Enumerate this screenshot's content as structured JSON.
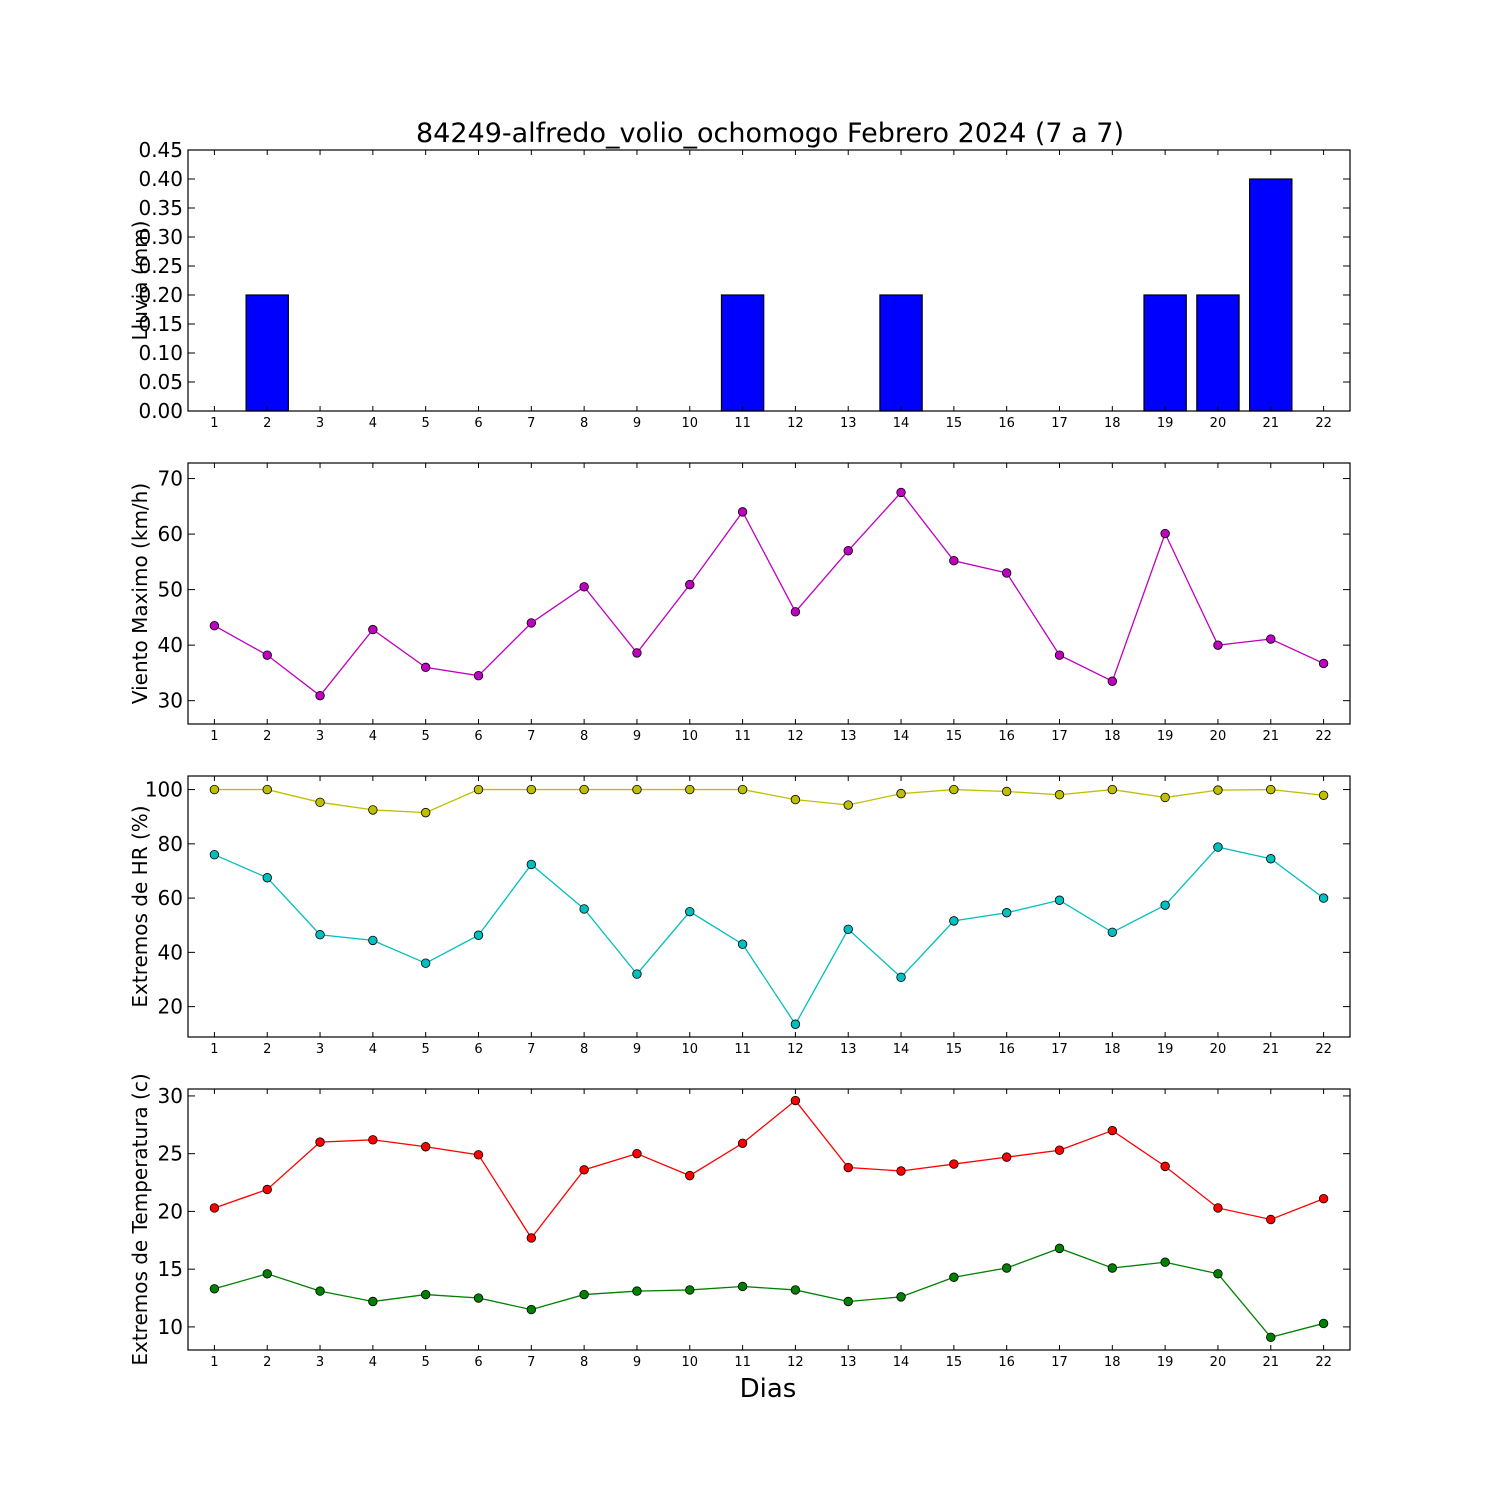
{
  "title": "84249-alfredo_volio_ochomogo Febrero 2024  (7 a 7)",
  "xlabel": "Dias",
  "chart_data": [
    {
      "type": "bar",
      "ylabel": "Lluvia (mm)",
      "categories": [
        1,
        2,
        3,
        4,
        5,
        6,
        7,
        8,
        9,
        10,
        11,
        12,
        13,
        14,
        15,
        16,
        17,
        18,
        19,
        20,
        21,
        22
      ],
      "values": [
        0,
        0.2,
        0,
        0,
        0,
        0,
        0,
        0,
        0,
        0,
        0.2,
        0,
        0,
        0.2,
        0,
        0,
        0,
        0,
        0.2,
        0.2,
        0.4,
        0
      ],
      "ylim": [
        0,
        0.45
      ],
      "yticks": [
        "0.00",
        "0.05",
        "0.10",
        "0.15",
        "0.20",
        "0.25",
        "0.30",
        "0.35",
        "0.40",
        "0.45"
      ],
      "color": "#0000ff"
    },
    {
      "type": "line",
      "ylabel": "Viento Maximo (km/h)",
      "x": [
        1,
        2,
        3,
        4,
        5,
        6,
        7,
        8,
        9,
        10,
        11,
        12,
        13,
        14,
        15,
        16,
        17,
        18,
        19,
        20,
        21,
        22
      ],
      "series": [
        {
          "color": "#bf00bf",
          "values": [
            43.5,
            38.2,
            30.9,
            42.8,
            36,
            34.5,
            44,
            50.5,
            38.6,
            50.9,
            64,
            46,
            57,
            67.5,
            55.2,
            53,
            38.2,
            33.5,
            60.1,
            40,
            41.1,
            36.7
          ]
        }
      ],
      "ylim": [
        25.8,
        72.8
      ],
      "yticks": [
        "30",
        "40",
        "50",
        "60",
        "70"
      ]
    },
    {
      "type": "line",
      "ylabel": "Extremos de HR (%)",
      "x": [
        1,
        2,
        3,
        4,
        5,
        6,
        7,
        8,
        9,
        10,
        11,
        12,
        13,
        14,
        15,
        16,
        17,
        18,
        19,
        20,
        21,
        22
      ],
      "series": [
        {
          "color": "#bfbf00",
          "values": [
            100,
            100,
            95.3,
            92.5,
            91.5,
            100,
            100,
            100,
            100,
            100,
            100,
            96.3,
            94.3,
            98.5,
            100,
            99.3,
            98.1,
            100,
            97.1,
            99.8,
            100,
            97.9
          ]
        },
        {
          "color": "#00bfbf",
          "values": [
            76,
            67.5,
            46.5,
            44.4,
            36,
            46.3,
            72.4,
            56,
            32,
            55,
            43,
            13.5,
            48.5,
            30.8,
            51.6,
            54.6,
            59.2,
            47.4,
            57.4,
            78.8,
            74.5,
            60
          ]
        }
      ],
      "ylim": [
        8.8,
        105
      ],
      "yticks": [
        "20",
        "40",
        "60",
        "80",
        "100"
      ]
    },
    {
      "type": "line",
      "ylabel": "Extremos de Temperatura (c)",
      "x": [
        1,
        2,
        3,
        4,
        5,
        6,
        7,
        8,
        9,
        10,
        11,
        12,
        13,
        14,
        15,
        16,
        17,
        18,
        19,
        20,
        21,
        22
      ],
      "series": [
        {
          "color": "#ff0000",
          "values": [
            20.3,
            21.9,
            26,
            26.2,
            25.6,
            24.9,
            17.7,
            23.6,
            25,
            23.1,
            25.9,
            29.6,
            23.8,
            23.5,
            24.1,
            24.7,
            25.3,
            27,
            23.9,
            20.3,
            19.3,
            21.1
          ]
        },
        {
          "color": "#008000",
          "values": [
            13.3,
            14.6,
            13.1,
            12.2,
            12.8,
            12.5,
            11.5,
            12.8,
            13.1,
            13.2,
            13.5,
            13.2,
            12.2,
            12.6,
            14.3,
            15.1,
            16.8,
            15.1,
            15.6,
            14.6,
            9.1,
            10.3
          ]
        }
      ],
      "ylim": [
        8,
        30.6
      ],
      "yticks": [
        "10",
        "15",
        "20",
        "25",
        "30"
      ]
    }
  ]
}
